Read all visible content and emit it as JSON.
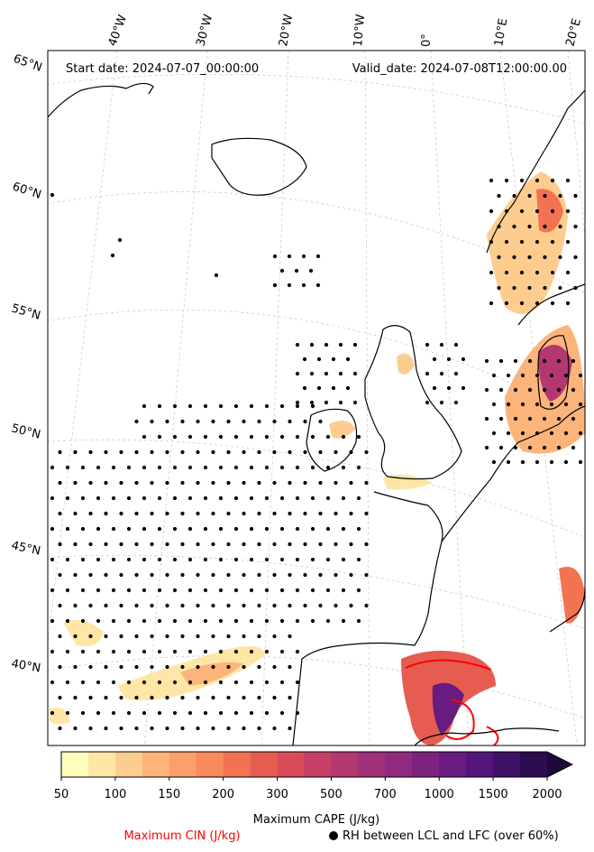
{
  "header": {
    "start": "Start date: 2024-07-07_00:00:00",
    "valid": "Valid_date: 2024-07-08T12:00:00.00"
  },
  "longitude_labels": [
    "40°W",
    "30°W",
    "20°W",
    "10°W",
    "0°",
    "10°E",
    "20°E"
  ],
  "latitude_labels": [
    "65°N",
    "60°N",
    "55°N",
    "50°N",
    "45°N",
    "40°N"
  ],
  "colorbar": {
    "ticks": [
      "50",
      "100",
      "150",
      "200",
      "300",
      "500",
      "700",
      "1000",
      "1500",
      "2000"
    ],
    "colors": [
      "#fffdbc",
      "#fde6a6",
      "#fdcd90",
      "#fcb47b",
      "#fba069",
      "#f88a5b",
      "#f37252",
      "#e75c51",
      "#d84c5a",
      "#c53f67",
      "#b33872",
      "#a1307a",
      "#8f2a7e",
      "#7c237f",
      "#681c7f",
      "#54167a",
      "#3f1167",
      "#2d0c4f",
      "#1d0a3a"
    ],
    "extend": "max",
    "label": "Maximum CAPE (J/kg)"
  },
  "legend": {
    "cin": "Maximum CIN (J/kg)",
    "rh": "RH between LCL and LFC (over 60%)",
    "cin_color": "#ff0000"
  }
}
